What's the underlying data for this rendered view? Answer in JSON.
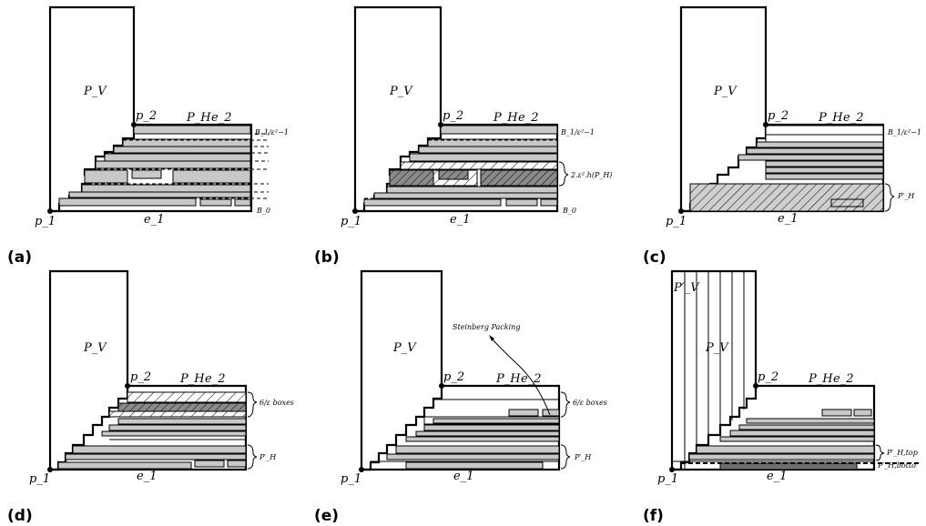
{
  "panels": {
    "a": {
      "caption": "(a)",
      "pv": "P_V",
      "ph": "P_H",
      "e2": "e_2",
      "p2": "p_2",
      "p1": "p_1",
      "e1": "e_1",
      "btop": "B_1/ε²−1",
      "b0": "B_0"
    },
    "b": {
      "caption": "(b)",
      "pv": "P_V",
      "ph": "P_H",
      "e2": "e_2",
      "p2": "p_2",
      "p1": "p_1",
      "e1": "e_1",
      "btop": "B_1/ε²−1",
      "b0": "B_0",
      "brace": "2.ε².h(P_H)"
    },
    "c": {
      "caption": "(c)",
      "pv": "P_V",
      "ph": "P_H",
      "e2": "e_2",
      "p2": "p_2",
      "p1": "p_1",
      "e1": "e_1",
      "btop": "B_1/ε²−1",
      "phprime": "P′_H"
    },
    "d": {
      "caption": "(d)",
      "pv": "P_V",
      "ph": "P_H",
      "e2": "e_2",
      "p2": "p_2",
      "p1": "p_1",
      "e1": "e_1",
      "boxes": "6/ε boxes",
      "phprime": "P′_H"
    },
    "e": {
      "caption": "(e)",
      "pv": "P_V",
      "ph": "P_H",
      "e2": "e_2",
      "p2": "p_2",
      "p1": "p_1",
      "e1": "e_1",
      "boxes": "6/ε boxes",
      "phprime": "P′_H",
      "steinberg": "Steinberg Packing"
    },
    "f": {
      "caption": "(f)",
      "pv": "P_V",
      "pvprime": "P′_V",
      "ph": "P_H",
      "e2": "e_2",
      "p2": "p_2",
      "p1": "p_1",
      "e1": "e_1",
      "phtop": "P′_H,top",
      "phbottom": "P′_H,botto"
    }
  }
}
